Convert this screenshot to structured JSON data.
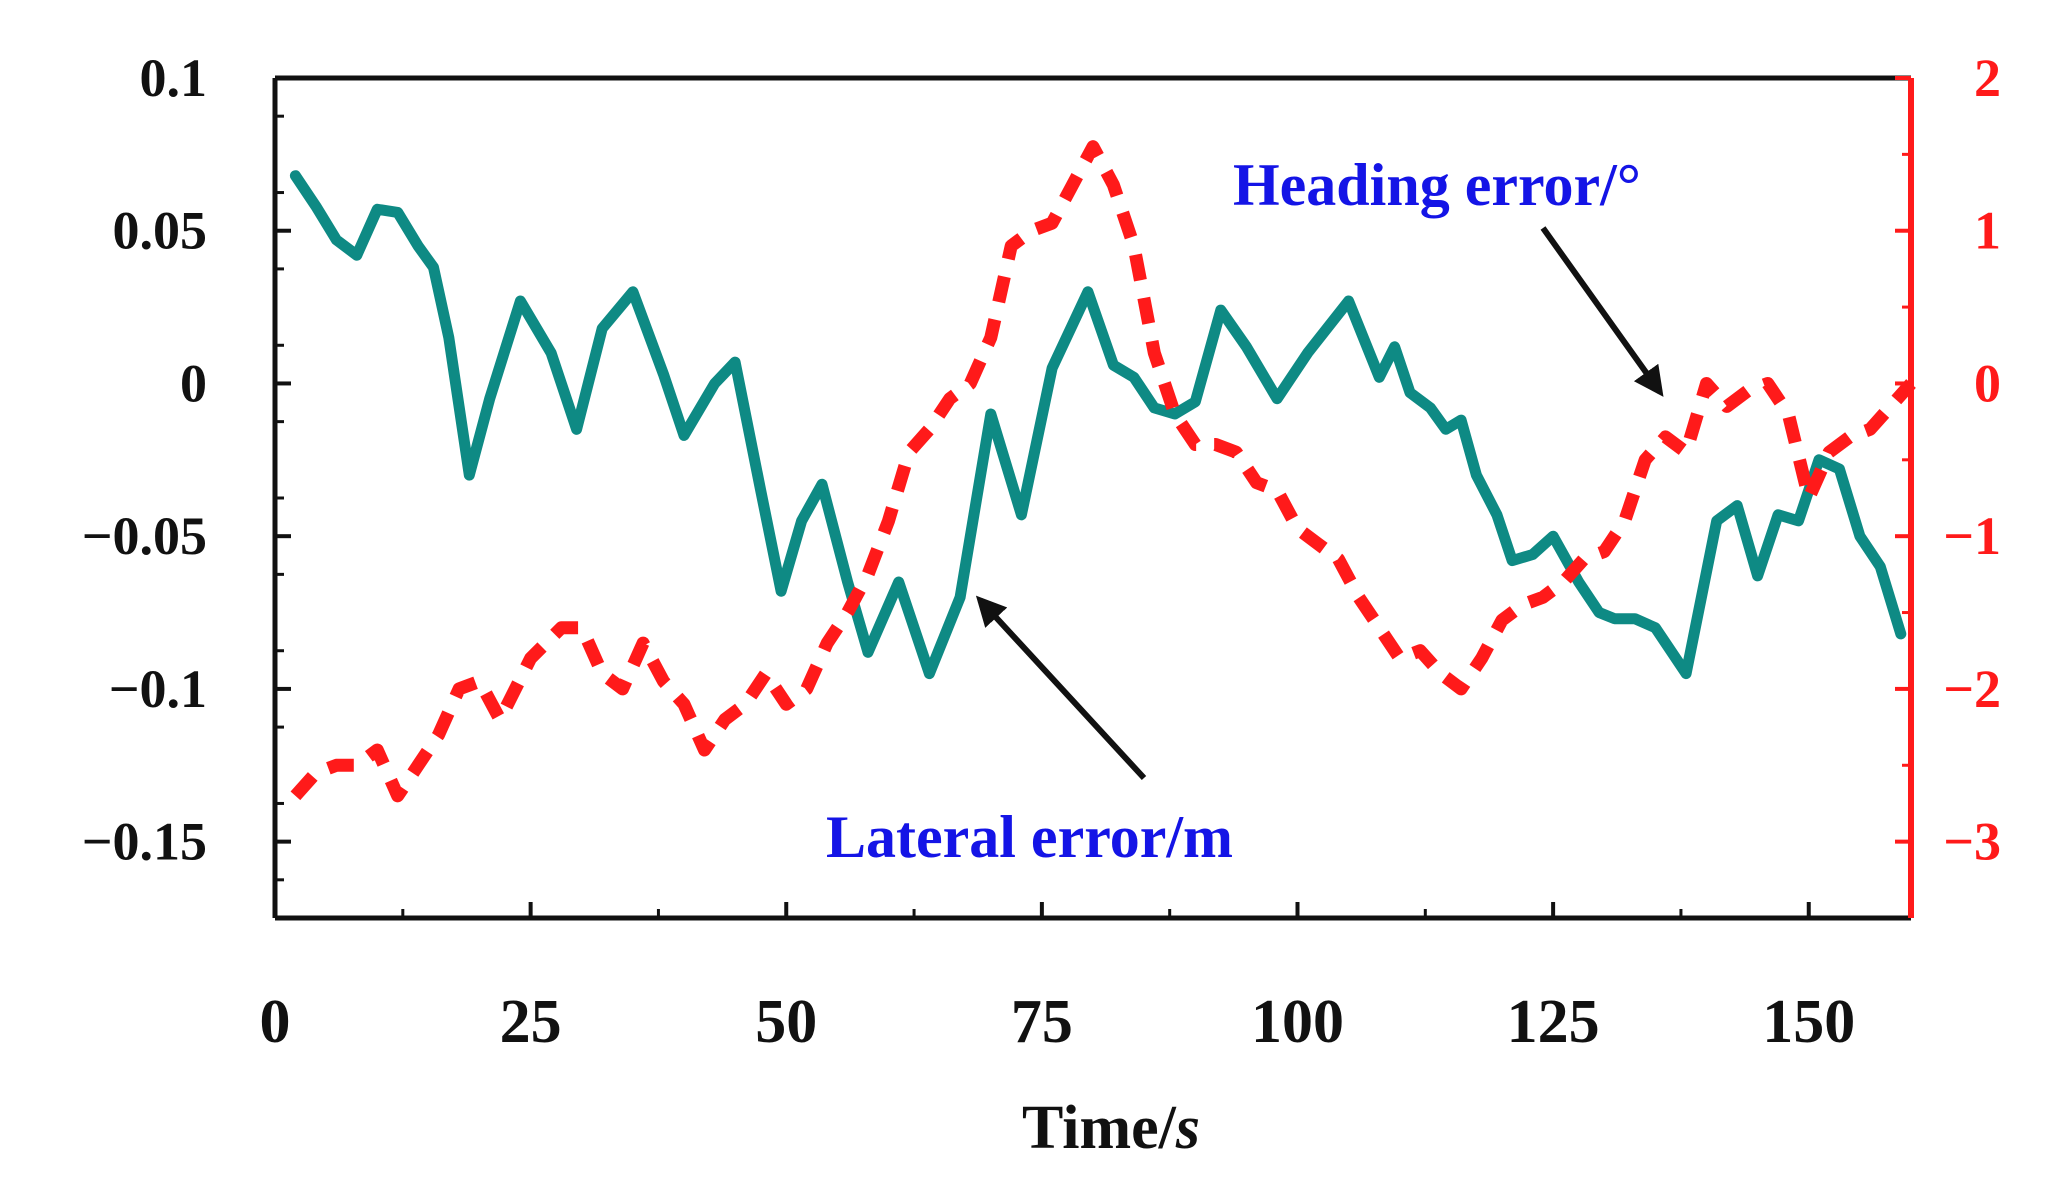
{
  "chart_data": {
    "type": "line",
    "title": "",
    "xlabel": {
      "main": "Time/",
      "italic": "s"
    },
    "xlim": [
      0,
      160
    ],
    "xticks": [
      0,
      25,
      50,
      75,
      100,
      125,
      150
    ],
    "xtick_labels": [
      "0",
      "25",
      "50",
      "75",
      "100",
      "125",
      "150"
    ],
    "left_axis": {
      "ylim": [
        -0.175,
        0.1
      ],
      "ticks": [
        0.1,
        0.05,
        0,
        -0.05,
        -0.1,
        -0.15
      ],
      "tick_labels": [
        "0.1",
        "0.05",
        "0",
        "−0.05",
        "−0.1",
        "−0.15"
      ],
      "color": "#111111"
    },
    "right_axis": {
      "ylim": [
        -3.5,
        2
      ],
      "ticks": [
        2,
        1,
        0,
        -1,
        -2,
        -3
      ],
      "tick_labels": [
        "2",
        "1",
        "0",
        "−1",
        "−2",
        "−3"
      ],
      "color": "#ff1a1a"
    },
    "grid": false,
    "series": [
      {
        "name": "Lateral error/m",
        "axis": "left",
        "color": "#0e8a84",
        "dash": "solid",
        "x": [
          2,
          4,
          6,
          8,
          10,
          12,
          14,
          15.5,
          17,
          19,
          21,
          24,
          27,
          29.5,
          32,
          35,
          38,
          40,
          43,
          45,
          47.5,
          49.5,
          51.5,
          53.5,
          56,
          58,
          61,
          64,
          67,
          70,
          73,
          76,
          79.5,
          82,
          84,
          86,
          88,
          90,
          92.5,
          95,
          98,
          101,
          105,
          108,
          109.5,
          111,
          113,
          114.5,
          116,
          117.5,
          119.5,
          121,
          123,
          125,
          127.5,
          129.5,
          131,
          133,
          135,
          138,
          141,
          143,
          145,
          147,
          149,
          151,
          153,
          155,
          157,
          159
        ],
        "values": [
          0.068,
          0.058,
          0.047,
          0.042,
          0.057,
          0.056,
          0.045,
          0.038,
          0.015,
          -0.03,
          -0.005,
          0.027,
          0.01,
          -0.015,
          0.018,
          0.03,
          0.003,
          -0.017,
          0.0,
          0.007,
          -0.035,
          -0.068,
          -0.045,
          -0.033,
          -0.065,
          -0.088,
          -0.065,
          -0.095,
          -0.07,
          -0.01,
          -0.043,
          0.005,
          0.03,
          0.006,
          0.002,
          -0.008,
          -0.01,
          -0.006,
          0.024,
          0.012,
          -0.005,
          0.01,
          0.027,
          0.002,
          0.012,
          -0.003,
          -0.008,
          -0.015,
          -0.012,
          -0.03,
          -0.043,
          -0.058,
          -0.056,
          -0.05,
          -0.065,
          -0.075,
          -0.077,
          -0.077,
          -0.08,
          -0.095,
          -0.045,
          -0.04,
          -0.063,
          -0.043,
          -0.045,
          -0.025,
          -0.028,
          -0.05,
          -0.06,
          -0.082
        ]
      },
      {
        "name": "Heading error/°",
        "axis": "right",
        "color": "#ff1a1a",
        "dash": "dashed",
        "x": [
          2,
          4,
          6,
          8,
          10,
          12,
          14,
          16,
          18,
          20,
          22,
          25,
          28,
          30,
          32,
          34,
          36,
          38,
          40,
          42,
          44,
          46,
          48,
          50,
          52,
          54,
          56,
          58,
          60,
          62,
          64,
          66,
          68,
          70,
          72,
          74,
          76,
          78,
          80,
          82,
          84,
          86,
          88,
          90,
          92,
          94,
          96,
          98,
          100,
          102,
          104,
          106,
          108,
          110,
          112,
          114,
          116,
          118,
          120,
          122,
          124,
          126,
          128,
          130,
          132,
          134,
          136,
          138,
          140,
          142,
          144,
          146,
          148,
          150,
          152,
          154,
          156,
          158,
          160
        ],
        "values": [
          -2.7,
          -2.55,
          -2.5,
          -2.5,
          -2.4,
          -2.7,
          -2.5,
          -2.3,
          -2.0,
          -1.95,
          -2.2,
          -1.8,
          -1.6,
          -1.6,
          -1.9,
          -2.0,
          -1.7,
          -1.95,
          -2.1,
          -2.4,
          -2.2,
          -2.1,
          -1.9,
          -2.1,
          -2.0,
          -1.7,
          -1.5,
          -1.25,
          -0.9,
          -0.45,
          -0.3,
          -0.1,
          0.0,
          0.3,
          0.9,
          1.0,
          1.05,
          1.3,
          1.55,
          1.3,
          0.9,
          0.2,
          -0.2,
          -0.4,
          -0.4,
          -0.45,
          -0.65,
          -0.7,
          -0.95,
          -1.05,
          -1.15,
          -1.4,
          -1.6,
          -1.8,
          -1.75,
          -1.9,
          -2.0,
          -1.8,
          -1.55,
          -1.45,
          -1.4,
          -1.3,
          -1.15,
          -1.1,
          -0.9,
          -0.5,
          -0.35,
          -0.45,
          0.0,
          -0.15,
          -0.05,
          0.0,
          -0.2,
          -0.75,
          -0.45,
          -0.35,
          -0.3,
          -0.15,
          0.0
        ]
      }
    ],
    "annotations": [
      {
        "text": "Heading error/°",
        "series": "Heading error/°"
      },
      {
        "text": "Lateral error/m",
        "series": "Lateral error/m"
      }
    ]
  }
}
